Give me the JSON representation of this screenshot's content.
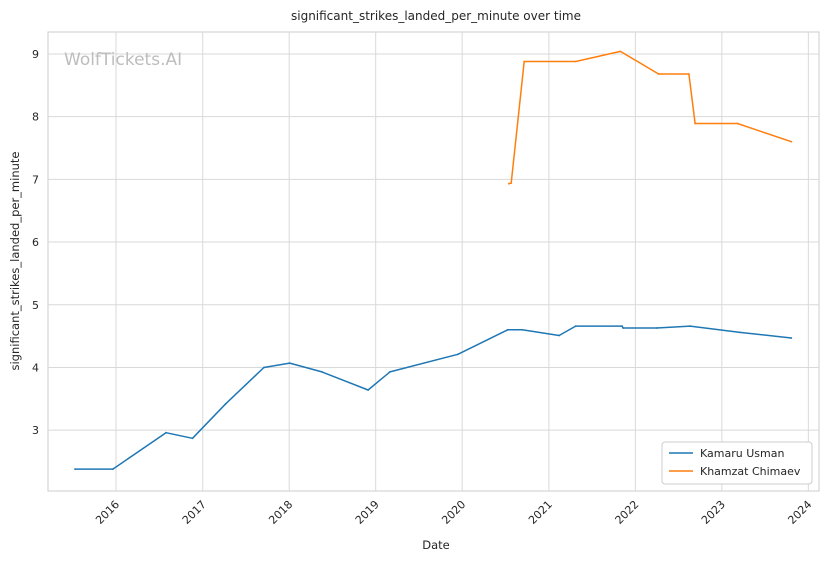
{
  "watermark": "WolfTickets.AI",
  "chart_data": {
    "type": "line",
    "title": "significant_strikes_landed_per_minute over time",
    "xlabel": "Date",
    "ylabel": "significant_strikes_landed_per_minute",
    "x_ticks": [
      "2016",
      "2017",
      "2018",
      "2019",
      "2020",
      "2021",
      "2022",
      "2023",
      "2024"
    ],
    "y_ticks": [
      3,
      4,
      5,
      6,
      7,
      8,
      9
    ],
    "xlim": [
      "2015-03-20",
      "2024-02-15"
    ],
    "ylim": [
      2.03,
      9.35
    ],
    "grid": true,
    "legend_position": "lower-right",
    "series": [
      {
        "name": "Kamaru Usman",
        "color": "#1f77b4",
        "points": [
          {
            "x": "2015-07-12",
            "y": 2.38
          },
          {
            "x": "2015-12-19",
            "y": 2.38
          },
          {
            "x": "2016-07-30",
            "y": 2.96
          },
          {
            "x": "2016-11-19",
            "y": 2.87
          },
          {
            "x": "2017-04-08",
            "y": 3.42
          },
          {
            "x": "2017-09-16",
            "y": 4.0
          },
          {
            "x": "2018-01-03",
            "y": 4.07
          },
          {
            "x": "2018-05-19",
            "y": 3.93
          },
          {
            "x": "2018-11-30",
            "y": 3.64
          },
          {
            "x": "2019-03-02",
            "y": 3.93
          },
          {
            "x": "2019-12-14",
            "y": 4.21
          },
          {
            "x": "2020-07-11",
            "y": 4.6
          },
          {
            "x": "2020-09-10",
            "y": 4.6
          },
          {
            "x": "2021-02-13",
            "y": 4.51
          },
          {
            "x": "2021-04-24",
            "y": 4.66
          },
          {
            "x": "2021-11-06",
            "y": 4.66
          },
          {
            "x": "2021-11-10",
            "y": 4.63
          },
          {
            "x": "2022-04-01",
            "y": 4.63
          },
          {
            "x": "2022-08-20",
            "y": 4.66
          },
          {
            "x": "2023-03-18",
            "y": 4.56
          },
          {
            "x": "2023-10-21",
            "y": 4.47
          }
        ]
      },
      {
        "name": "Khamzat Chimaev",
        "color": "#ff7f0e",
        "points": [
          {
            "x": "2020-07-16",
            "y": 6.93
          },
          {
            "x": "2020-07-26",
            "y": 6.94
          },
          {
            "x": "2020-09-19",
            "y": 8.88
          },
          {
            "x": "2021-04-24",
            "y": 8.88
          },
          {
            "x": "2021-10-30",
            "y": 9.04
          },
          {
            "x": "2022-04-09",
            "y": 8.68
          },
          {
            "x": "2022-08-15",
            "y": 8.68
          },
          {
            "x": "2022-09-10",
            "y": 7.89
          },
          {
            "x": "2023-03-08",
            "y": 7.89
          },
          {
            "x": "2023-10-21",
            "y": 7.6
          }
        ]
      }
    ]
  }
}
